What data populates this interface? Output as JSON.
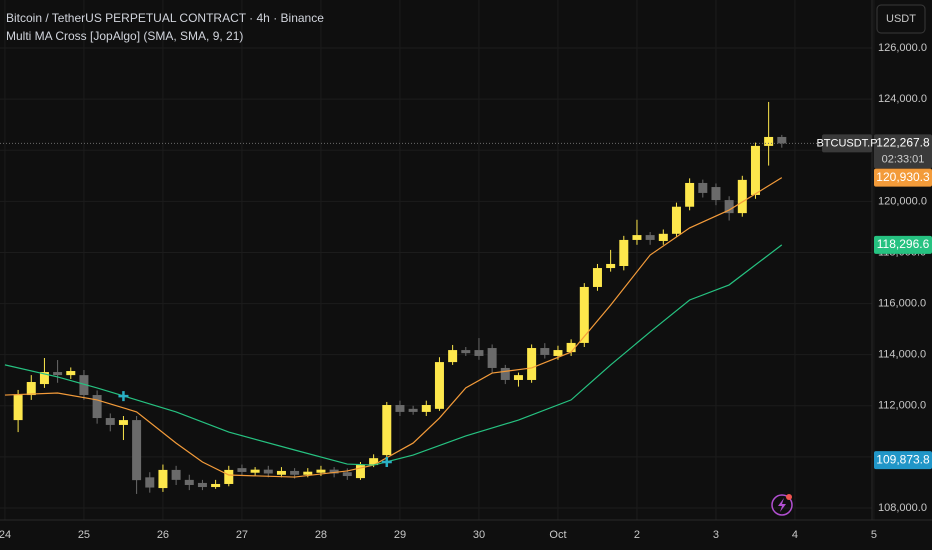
{
  "chart_data": {
    "type": "candlestick",
    "title": "Bitcoin / TetherUS PERPETUAL CONTRACT · 4h · Binance",
    "subtitle": "Multi MA Cross [JopAlgo] (SMA, SMA, 9, 21)",
    "currency_button": "USDT",
    "symbol_label": "BTCUSDT.P",
    "countdown": "02:33:01",
    "xlim": [
      -1.5,
      263.4
    ],
    "ylim": [
      107530,
      127880
    ],
    "grid": true,
    "xticks": [
      {
        "value": 0,
        "label": "24"
      },
      {
        "value": 24,
        "label": "25"
      },
      {
        "value": 48,
        "label": "26"
      },
      {
        "value": 72,
        "label": "27"
      },
      {
        "value": 96,
        "label": "28"
      },
      {
        "value": 120,
        "label": "29"
      },
      {
        "value": 144,
        "label": "30"
      },
      {
        "value": 168,
        "label": "Oct"
      },
      {
        "value": 192,
        "label": "2"
      },
      {
        "value": 216,
        "label": "3"
      },
      {
        "value": 240,
        "label": "4"
      },
      {
        "value": 264,
        "label": "5"
      }
    ],
    "yticks": [
      {
        "value": 108000,
        "label": "108,000.0"
      },
      {
        "value": 110000,
        "label": "110,000.0"
      },
      {
        "value": 112000,
        "label": "112,000.0"
      },
      {
        "value": 114000,
        "label": "114,000.0"
      },
      {
        "value": 116000,
        "label": "116,000.0"
      },
      {
        "value": 118000,
        "label": "118,000.0"
      },
      {
        "value": 120000,
        "label": "120,000.0"
      },
      {
        "value": 122000,
        "label": "122,000.0"
      },
      {
        "value": 124000,
        "label": "124,000.0"
      },
      {
        "value": 126000,
        "label": "126,000.0"
      }
    ],
    "up_color": "#fde74c",
    "down_color": "#6a6a6a",
    "candles": {
      "x": [
        4,
        8,
        12,
        16,
        20,
        24,
        28,
        32,
        36,
        40,
        44,
        48,
        52,
        56,
        60,
        64,
        68,
        72,
        76,
        80,
        84,
        88,
        92,
        96,
        100,
        104,
        108,
        112,
        116,
        120,
        124,
        128,
        132,
        136,
        140,
        144,
        148,
        152,
        156,
        160,
        164,
        168,
        172,
        176,
        180,
        184,
        188,
        192,
        196,
        200,
        204,
        208,
        212,
        216,
        220,
        224,
        228,
        232,
        236
      ],
      "open": [
        111440,
        112420,
        112850,
        113320,
        113200,
        113200,
        112420,
        111520,
        111250,
        111440,
        109200,
        108780,
        109490,
        109100,
        108980,
        108820,
        108940,
        109560,
        109380,
        109500,
        109300,
        109450,
        109300,
        109380,
        109500,
        109400,
        109170,
        109680,
        110070,
        112030,
        111880,
        111760,
        111880,
        113710,
        114180,
        114180,
        114260,
        113480,
        113010,
        113010,
        114260,
        113950,
        114100,
        114460,
        116650,
        117390,
        117470,
        118490,
        118680,
        118450,
        118730,
        119790,
        120720,
        120560,
        120050,
        119540,
        120250,
        122170,
        122520
      ],
      "high": [
        112620,
        113200,
        113870,
        113790,
        113500,
        113400,
        112600,
        111700,
        111600,
        111600,
        109400,
        109700,
        109650,
        109300,
        109100,
        109100,
        109650,
        109700,
        109600,
        109650,
        109600,
        109560,
        109560,
        109650,
        109600,
        109550,
        109800,
        110100,
        112150,
        112200,
        112000,
        112200,
        113900,
        114380,
        114300,
        114650,
        114400,
        113600,
        113300,
        114400,
        114450,
        114350,
        114600,
        116800,
        117550,
        118100,
        118650,
        119280,
        118800,
        118900,
        119950,
        120900,
        120850,
        120700,
        120200,
        121000,
        122300,
        123890,
        122600
      ],
      "low": [
        110970,
        112230,
        112700,
        112900,
        113050,
        112230,
        111300,
        111000,
        110660,
        108550,
        108600,
        108630,
        108900,
        108700,
        108700,
        108750,
        108850,
        109250,
        109250,
        109200,
        109200,
        109150,
        109200,
        109250,
        109200,
        109100,
        109100,
        109600,
        109680,
        111600,
        111650,
        111600,
        111800,
        113600,
        113950,
        113800,
        113300,
        112850,
        112750,
        112900,
        113850,
        113800,
        113950,
        114300,
        116500,
        117250,
        117300,
        118300,
        118300,
        118300,
        118600,
        119650,
        120150,
        119850,
        119250,
        119400,
        120100,
        121400,
        122100
      ],
      "close": [
        112420,
        112930,
        113320,
        113200,
        113360,
        112420,
        111520,
        111250,
        111440,
        109090,
        108800,
        109490,
        109100,
        108900,
        108820,
        108940,
        109490,
        109410,
        109500,
        109350,
        109450,
        109300,
        109420,
        109500,
        109350,
        109250,
        109680,
        109950,
        112030,
        111760,
        111760,
        112030,
        113710,
        114180,
        114060,
        113950,
        113480,
        113010,
        113200,
        114260,
        113990,
        114180,
        114460,
        116650,
        117390,
        117550,
        118490,
        118680,
        118490,
        118730,
        119790,
        120720,
        120330,
        120050,
        119540,
        120840,
        122170,
        122520,
        122267.8
      ]
    },
    "series": [
      {
        "color": "#f39b3a",
        "x": [
          0,
          16,
          28,
          40,
          52,
          60,
          68,
          88,
          104,
          112,
          124,
          132,
          140,
          148,
          160,
          172,
          184,
          196,
          208,
          220,
          236
        ],
        "values": [
          112420,
          112500,
          112230,
          111760,
          110540,
          109800,
          109290,
          109210,
          109450,
          109680,
          110540,
          111520,
          112700,
          113280,
          113480,
          114100,
          115940,
          117900,
          118960,
          119660,
          120930.3
        ]
      },
      {
        "color": "#26c281",
        "x": [
          0,
          16,
          28,
          40,
          52,
          68,
          88,
          104,
          112,
          124,
          140,
          156,
          172,
          184,
          196,
          208,
          220,
          236
        ],
        "values": [
          113600,
          113130,
          112700,
          112230,
          111760,
          110970,
          110270,
          109720,
          109680,
          110070,
          110820,
          111440,
          112230,
          113600,
          114890,
          116140,
          116730,
          118296.6
        ]
      }
    ],
    "signals": {
      "color": "#2ab0c5",
      "x": [
        36,
        116
      ],
      "y": [
        112380,
        109800
      ]
    },
    "price_labels": [
      {
        "value": 122267.8,
        "label": "122,267.8",
        "color": "#3a3a3a"
      },
      {
        "value": 120930.3,
        "label": "120,930.3",
        "color": "#f39b3a"
      },
      {
        "value": 118296.6,
        "label": "118,296.6",
        "color": "#26c281"
      },
      {
        "value": 109873.8,
        "label": "109,873.8",
        "color": "#2196c8"
      }
    ]
  }
}
